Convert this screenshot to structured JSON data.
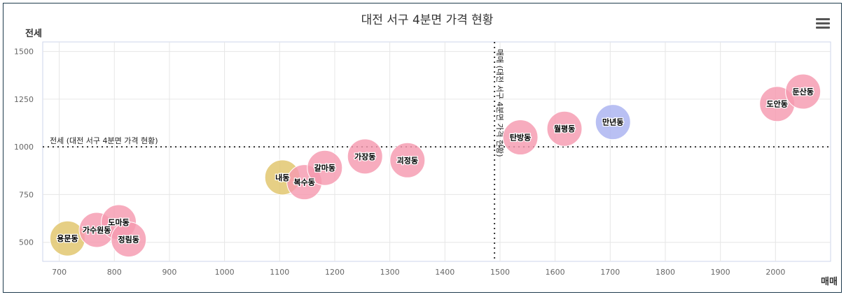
{
  "chart_data": {
    "type": "bubble",
    "title": "대전 서구 4분면 가격 현황",
    "xlabel": "매매",
    "ylabel": "전세",
    "xlim": [
      670,
      2100
    ],
    "ylim": [
      400,
      1550
    ],
    "xticks": [
      700,
      800,
      900,
      1000,
      1100,
      1200,
      1300,
      1400,
      1500,
      1600,
      1700,
      1800,
      1900,
      2000
    ],
    "yticks": [
      500,
      750,
      1000,
      1250,
      1500
    ],
    "grid": true,
    "reference_lines": {
      "x": {
        "value": 1490,
        "label": "매매 (대전 서구 4분면 가격 현황)"
      },
      "y": {
        "value": 1000,
        "label": "전세 (대전 서구 4분면 가격 현황)"
      }
    },
    "colors": {
      "pink": "#f59ab0",
      "yellow": "#e0c46a",
      "blue": "#a9b2f0"
    },
    "points": [
      {
        "name": "용문동",
        "x": 715,
        "y": 520,
        "color": "yellow"
      },
      {
        "name": "가수원동",
        "x": 768,
        "y": 565,
        "color": "pink"
      },
      {
        "name": "도마동",
        "x": 808,
        "y": 605,
        "color": "pink"
      },
      {
        "name": "정림동",
        "x": 826,
        "y": 515,
        "color": "pink"
      },
      {
        "name": "내동",
        "x": 1105,
        "y": 840,
        "color": "yellow"
      },
      {
        "name": "복수동",
        "x": 1145,
        "y": 815,
        "color": "pink"
      },
      {
        "name": "갈마동",
        "x": 1182,
        "y": 890,
        "color": "pink"
      },
      {
        "name": "가장동",
        "x": 1255,
        "y": 950,
        "color": "pink"
      },
      {
        "name": "괴정동",
        "x": 1332,
        "y": 930,
        "color": "pink"
      },
      {
        "name": "탄방동",
        "x": 1537,
        "y": 1050,
        "color": "pink"
      },
      {
        "name": "월평동",
        "x": 1617,
        "y": 1095,
        "color": "pink"
      },
      {
        "name": "만년동",
        "x": 1705,
        "y": 1130,
        "color": "blue"
      },
      {
        "name": "도안동",
        "x": 2003,
        "y": 1225,
        "color": "pink"
      },
      {
        "name": "둔산동",
        "x": 2050,
        "y": 1290,
        "color": "pink"
      }
    ]
  },
  "toolbar": {
    "menu_icon": "hamburger-icon"
  }
}
